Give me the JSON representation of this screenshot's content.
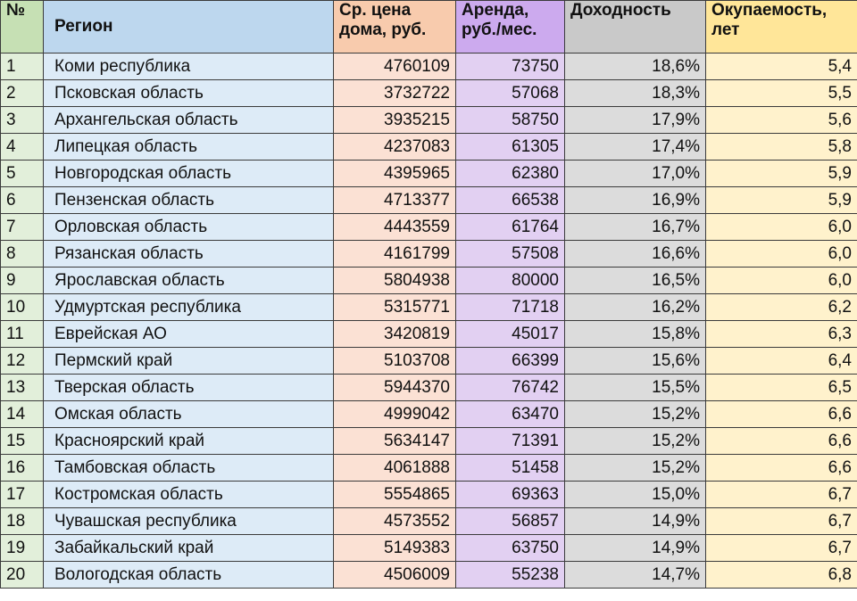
{
  "table": {
    "headers": {
      "num": "№",
      "region": "Регион",
      "price": "Ср. цена дома, руб.",
      "rent": "Аренда, руб./мес.",
      "yield": "Доходность",
      "payback": "Окупаемость, лет"
    },
    "rows": [
      {
        "num": "1",
        "region": "Коми республика",
        "price": "4760109",
        "rent": "73750",
        "yield": "18,6%",
        "payback": "5,4"
      },
      {
        "num": "2",
        "region": "Псковская область",
        "price": "3732722",
        "rent": "57068",
        "yield": "18,3%",
        "payback": "5,5"
      },
      {
        "num": "3",
        "region": "Архангельская область",
        "price": "3935215",
        "rent": "58750",
        "yield": "17,9%",
        "payback": "5,6"
      },
      {
        "num": "4",
        "region": "Липецкая область",
        "price": "4237083",
        "rent": "61305",
        "yield": "17,4%",
        "payback": "5,8"
      },
      {
        "num": "5",
        "region": "Новгородская область",
        "price": "4395965",
        "rent": "62380",
        "yield": "17,0%",
        "payback": "5,9"
      },
      {
        "num": "6",
        "region": "Пензенская область",
        "price": "4713377",
        "rent": "66538",
        "yield": "16,9%",
        "payback": "5,9"
      },
      {
        "num": "7",
        "region": "Орловская область",
        "price": "4443559",
        "rent": "61764",
        "yield": "16,7%",
        "payback": "6,0"
      },
      {
        "num": "8",
        "region": "Рязанская область",
        "price": "4161799",
        "rent": "57508",
        "yield": "16,6%",
        "payback": "6,0"
      },
      {
        "num": "9",
        "region": "Ярославская область",
        "price": "5804938",
        "rent": "80000",
        "yield": "16,5%",
        "payback": "6,0"
      },
      {
        "num": "10",
        "region": "Удмуртская республика",
        "price": "5315771",
        "rent": "71718",
        "yield": "16,2%",
        "payback": "6,2"
      },
      {
        "num": "11",
        "region": "Еврейская АО",
        "price": "3420819",
        "rent": "45017",
        "yield": "15,8%",
        "payback": "6,3"
      },
      {
        "num": "12",
        "region": "Пермский край",
        "price": "5103708",
        "rent": "66399",
        "yield": "15,6%",
        "payback": "6,4"
      },
      {
        "num": "13",
        "region": "Тверская область",
        "price": "5944370",
        "rent": "76742",
        "yield": "15,5%",
        "payback": "6,5"
      },
      {
        "num": "14",
        "region": "Омская область",
        "price": "4999042",
        "rent": "63470",
        "yield": "15,2%",
        "payback": "6,6"
      },
      {
        "num": "15",
        "region": "Красноярский край",
        "price": "5634147",
        "rent": "71391",
        "yield": "15,2%",
        "payback": "6,6"
      },
      {
        "num": "16",
        "region": "Тамбовская область",
        "price": "4061888",
        "rent": "51458",
        "yield": "15,2%",
        "payback": "6,6"
      },
      {
        "num": "17",
        "region": "Костромская область",
        "price": "5554865",
        "rent": "69363",
        "yield": "15,0%",
        "payback": "6,7"
      },
      {
        "num": "18",
        "region": "Чувашская республика",
        "price": "4573552",
        "rent": "56857",
        "yield": "14,9%",
        "payback": "6,7"
      },
      {
        "num": "19",
        "region": "Забайкальский край",
        "price": "5149383",
        "rent": "63750",
        "yield": "14,9%",
        "payback": "6,7"
      },
      {
        "num": "20",
        "region": "Вологодская область",
        "price": "4506009",
        "rent": "55238",
        "yield": "14,7%",
        "payback": "6,8"
      }
    ]
  },
  "colors": {
    "num_header": "#c6e0b4",
    "num_cell": "#e2efda",
    "region_header": "#bdd7ee",
    "region_cell": "#ddebf7",
    "price_header": "#f8cbad",
    "price_cell": "#fbe1d4",
    "rent_header": "#ccaaee",
    "rent_cell": "#e2d0f2",
    "yield_header": "#c9c9c9",
    "yield_cell": "#dcdcdc",
    "payback_header": "#ffe699",
    "payback_cell": "#fff2cc"
  }
}
